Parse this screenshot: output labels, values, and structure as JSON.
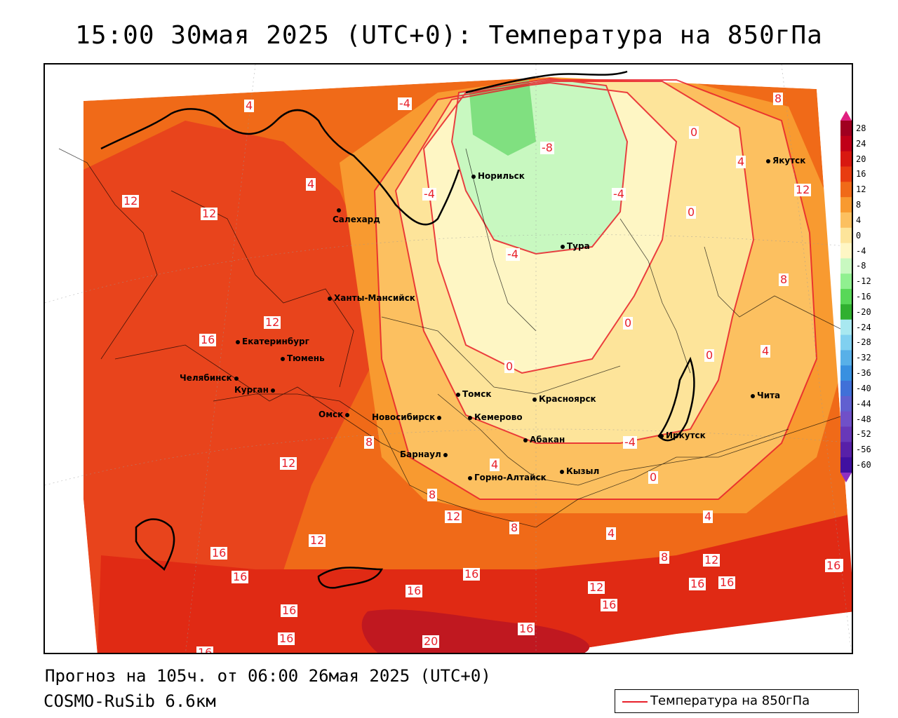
{
  "title": "15:00 30мая 2025 (UTC+0): Температура на 850гПа",
  "footer": {
    "forecast": "Прогноз на 105ч. от 06:00 26мая 2025 (UTC+0)",
    "model": "COSMO-RuSib 6.6км"
  },
  "legend": {
    "label": "Температура на 850гПа",
    "line_color": "#e8202a"
  },
  "colorbar": {
    "ticks": [
      "28",
      "24",
      "20",
      "16",
      "12",
      "8",
      "4",
      "0",
      "-4",
      "-8",
      "-12",
      "-16",
      "-20",
      "-24",
      "-28",
      "-32",
      "-36",
      "-40",
      "-44",
      "-48",
      "-52",
      "-56",
      "-60"
    ],
    "colors": [
      "#a00020",
      "#c00018",
      "#d81810",
      "#e83c10",
      "#f06a18",
      "#f89a30",
      "#fcc060",
      "#fde49a",
      "#fef6c4",
      "#c8f8c0",
      "#90f090",
      "#58d858",
      "#30b030",
      "#a8e8f0",
      "#80d0f0",
      "#58b0e8",
      "#3890e0",
      "#4070d8",
      "#6060d0",
      "#7050c8",
      "#6838b8",
      "#5820a8",
      "#4010a0"
    ]
  },
  "cities": [
    {
      "name": "Якутск"
    },
    {
      "name": "Норильск"
    },
    {
      "name": "Салехард"
    },
    {
      "name": "Тура"
    },
    {
      "name": "Ханты-Мансийск"
    },
    {
      "name": "Екатеринбург"
    },
    {
      "name": "Тюмень"
    },
    {
      "name": "Челябинск"
    },
    {
      "name": "Курган"
    },
    {
      "name": "Омск"
    },
    {
      "name": "Новосибирск"
    },
    {
      "name": "Томск"
    },
    {
      "name": "Кемерово"
    },
    {
      "name": "Красноярск"
    },
    {
      "name": "Барнаул"
    },
    {
      "name": "Абакан"
    },
    {
      "name": "Горно-Алтайск"
    },
    {
      "name": "Кызыл"
    },
    {
      "name": "Иркутск"
    },
    {
      "name": "Чита"
    }
  ],
  "contour_labels": [
    "4",
    "-4",
    "-8",
    "8",
    "12",
    "12",
    "12",
    "-4",
    "-4",
    "-4",
    "0",
    "0",
    "0",
    "4",
    "4",
    "12",
    "16",
    "8",
    "0",
    "0",
    "-4",
    "4",
    "4",
    "0",
    "8",
    "12",
    "8",
    "12",
    "8",
    "4",
    "4",
    "8",
    "12",
    "16",
    "16",
    "16",
    "12",
    "16",
    "16",
    "16",
    "16",
    "20",
    "16",
    "16",
    "16",
    "12",
    "16",
    "16",
    "16"
  ]
}
